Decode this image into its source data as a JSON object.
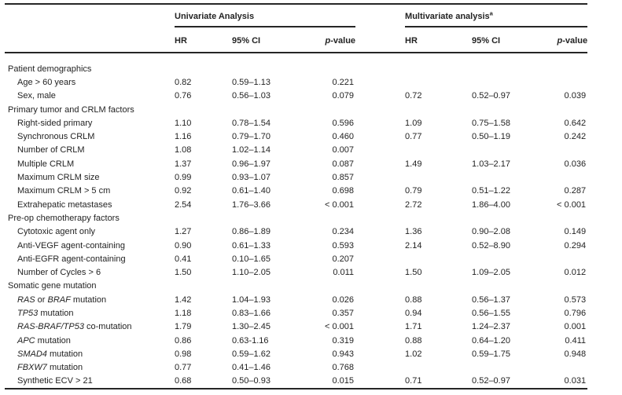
{
  "table": {
    "groups": {
      "univariate": "Univariate Analysis",
      "multivariate": "Multivariate analysis",
      "multivariate_sup": "a"
    },
    "columns": {
      "hr": "HR",
      "ci": "95% CI",
      "p_prefix": "p",
      "p_suffix": "-value"
    },
    "rows": [
      {
        "section": true,
        "label": "Patient demographics"
      },
      {
        "label": "Age > 60 years",
        "cells": [
          "0.82",
          "0.59–1.13",
          "0.221",
          "",
          "",
          ""
        ]
      },
      {
        "label": "Sex, male",
        "cells": [
          "0.76",
          "0.56–1.03",
          "0.079",
          "0.72",
          "0.52–0.97",
          "0.039"
        ]
      },
      {
        "section": true,
        "label": "Primary tumor and CRLM factors"
      },
      {
        "label": "Right-sided primary",
        "cells": [
          "1.10",
          "0.78–1.54",
          "0.596",
          "1.09",
          "0.75–1.58",
          "0.642"
        ]
      },
      {
        "label": "Synchronous CRLM",
        "cells": [
          "1.16",
          "0.79–1.70",
          "0.460",
          "0.77",
          "0.50–1.19",
          "0.242"
        ]
      },
      {
        "label": "Number of CRLM",
        "cells": [
          "1.08",
          "1.02–1.14",
          "0.007",
          "",
          "",
          ""
        ]
      },
      {
        "label": "Multiple CRLM",
        "cells": [
          "1.37",
          "0.96–1.97",
          "0.087",
          "1.49",
          "1.03–2.17",
          "0.036"
        ]
      },
      {
        "label": "Maximum CRLM size",
        "cells": [
          "0.99",
          "0.93–1.07",
          "0.857",
          "",
          "",
          ""
        ]
      },
      {
        "label": "Maximum CRLM > 5 cm",
        "cells": [
          "0.92",
          "0.61–1.40",
          "0.698",
          "0.79",
          "0.51–1.22",
          "0.287"
        ]
      },
      {
        "label": "Extrahepatic metastases",
        "cells": [
          "2.54",
          "1.76–3.66",
          "< 0.001",
          "2.72",
          "1.86–4.00",
          "< 0.001"
        ]
      },
      {
        "section": true,
        "label": "Pre-op chemotherapy factors"
      },
      {
        "label": "Cytotoxic agent only",
        "cells": [
          "1.27",
          "0.86–1.89",
          "0.234",
          "1.36",
          "0.90–2.08",
          "0.149"
        ]
      },
      {
        "label": "Anti-VEGF agent-containing",
        "cells": [
          "0.90",
          "0.61–1.33",
          "0.593",
          "2.14",
          "0.52–8.90",
          "0.294"
        ]
      },
      {
        "label": "Anti-EGFR agent-containing",
        "cells": [
          "0.41",
          "0.10–1.65",
          "0.207",
          "",
          "",
          ""
        ]
      },
      {
        "label": "Number of Cycles > 6",
        "cells": [
          "1.50",
          "1.10–2.05",
          "0.011",
          "1.50",
          "1.09–2.05",
          "0.012"
        ]
      },
      {
        "section": true,
        "label": "Somatic gene mutation"
      },
      {
        "parts": [
          [
            "RAS",
            true
          ],
          [
            " or ",
            false
          ],
          [
            "BRAF",
            true
          ],
          [
            " mutation",
            false
          ]
        ],
        "cells": [
          "1.42",
          "1.04–1.93",
          "0.026",
          "0.88",
          "0.56–1.37",
          "0.573"
        ]
      },
      {
        "parts": [
          [
            "TP53",
            true
          ],
          [
            " mutation",
            false
          ]
        ],
        "cells": [
          "1.18",
          "0.83–1.66",
          "0.357",
          "0.94",
          "0.56–1.55",
          "0.796"
        ]
      },
      {
        "parts": [
          [
            "RAS-BRAF/TP53",
            true
          ],
          [
            " co-mutation",
            false
          ]
        ],
        "cells": [
          "1.79",
          "1.30–2.45",
          "< 0.001",
          "1.71",
          "1.24–2.37",
          "0.001"
        ]
      },
      {
        "parts": [
          [
            "APC",
            true
          ],
          [
            " mutation",
            false
          ]
        ],
        "cells": [
          "0.86",
          "0.63-1.16",
          "0.319",
          "0.88",
          "0.64–1.20",
          "0.411"
        ]
      },
      {
        "parts": [
          [
            "SMAD4",
            true
          ],
          [
            " mutation",
            false
          ]
        ],
        "cells": [
          "0.98",
          "0.59–1.62",
          "0.943",
          "1.02",
          "0.59–1.75",
          "0.948"
        ]
      },
      {
        "parts": [
          [
            "FBXW7",
            true
          ],
          [
            " mutation",
            false
          ]
        ],
        "cells": [
          "0.77",
          "0.41–1.46",
          "0.768",
          "",
          "",
          ""
        ]
      },
      {
        "label": "Synthetic ECV > 21",
        "cells": [
          "0.68",
          "0.50–0.93",
          "0.015",
          "0.71",
          "0.52–0.97",
          "0.031"
        ]
      }
    ]
  }
}
